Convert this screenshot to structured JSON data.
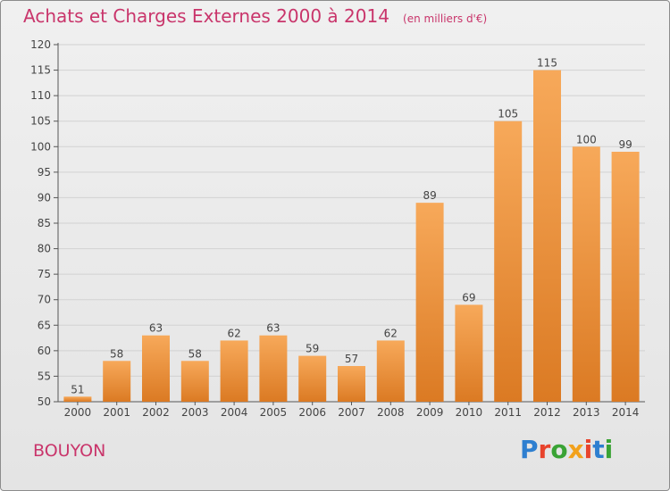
{
  "title": "Achats et Charges Externes 2000 à 2014",
  "unit": "(en milliers d'€)",
  "city": "BOUYON",
  "logo": "Proxiti",
  "logo_colors": [
    "#2e7fd0",
    "#e8432c",
    "#3aa335",
    "#f2a11c",
    "#e8432c",
    "#2e7fd0",
    "#3aa335"
  ],
  "colors": {
    "title": "#c9356b",
    "bar_light": "#f7a95a",
    "bar_dark": "#db7a23"
  },
  "chart_data": {
    "type": "bar",
    "categories": [
      "2000",
      "2001",
      "2002",
      "2003",
      "2004",
      "2005",
      "2006",
      "2007",
      "2008",
      "2009",
      "2010",
      "2011",
      "2012",
      "2013",
      "2014"
    ],
    "values": [
      51,
      58,
      63,
      58,
      62,
      63,
      59,
      57,
      62,
      89,
      69,
      105,
      115,
      100,
      99
    ],
    "ylim": [
      50,
      120
    ],
    "yticks": [
      50,
      55,
      60,
      65,
      70,
      75,
      80,
      85,
      90,
      95,
      100,
      105,
      110,
      115,
      120
    ],
    "grid": true,
    "title": "Achats et Charges Externes 2000 à 2014",
    "xlabel": "",
    "ylabel": ""
  }
}
